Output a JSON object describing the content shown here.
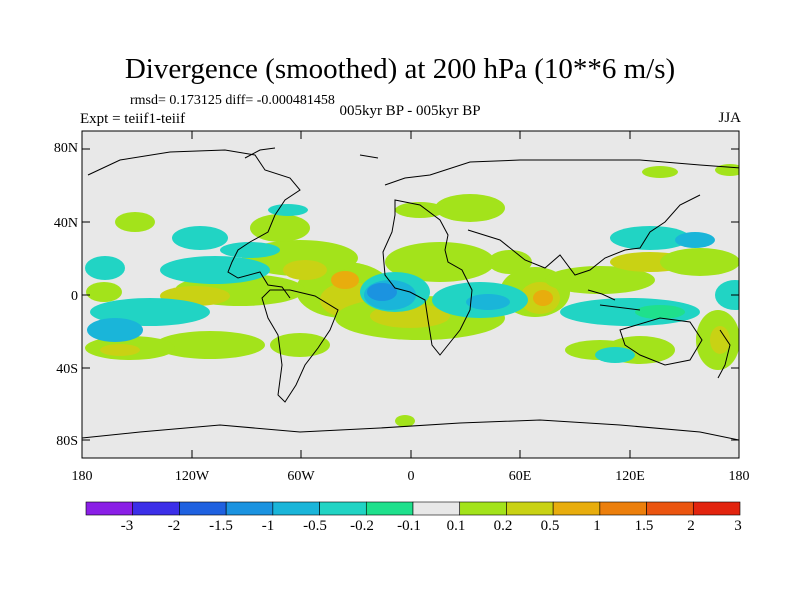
{
  "title": "Divergence (smoothed) at 200 hPa (10**6 m/s)",
  "stats": "rmsd= 0.173125 diff= -0.000481458",
  "experiment": "Expt = teiif1-teiif",
  "period": "005kyr BP - 005kyr BP",
  "season": "JJA",
  "y_axis": {
    "ticks": [
      "80N",
      "40N",
      "0",
      "40S",
      "80S"
    ]
  },
  "x_axis": {
    "ticks": [
      "180",
      "120W",
      "60W",
      "0",
      "60E",
      "120E",
      "180"
    ]
  },
  "colorbar": {
    "labels": [
      "-3",
      "-2",
      "-1.5",
      "-1",
      "-0.5",
      "-0.2",
      "-0.1",
      "0.1",
      "0.2",
      "0.5",
      "1",
      "1.5",
      "2",
      "3"
    ],
    "colors": [
      "#8a1fe6",
      "#3c2fe8",
      "#1f61e0",
      "#1b93e0",
      "#1ab5d9",
      "#21d4c4",
      "#1fe08c",
      "#e8e8e8",
      "#a3e31b",
      "#c9d214",
      "#e8ad0d",
      "#ec7f0c",
      "#eb5510",
      "#e2240e"
    ]
  },
  "map_colors": {
    "background": "#e8e8e8",
    "coastline": "#000000"
  }
}
